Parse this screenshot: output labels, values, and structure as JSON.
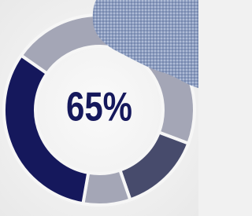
{
  "chart_data": {
    "type": "donut",
    "center_label": "65%",
    "values": [
      46,
      14,
      8,
      32
    ],
    "colors": [
      "#a4a6b6",
      "#474b6c",
      "#a4a6b6",
      "#15185c"
    ]
  }
}
